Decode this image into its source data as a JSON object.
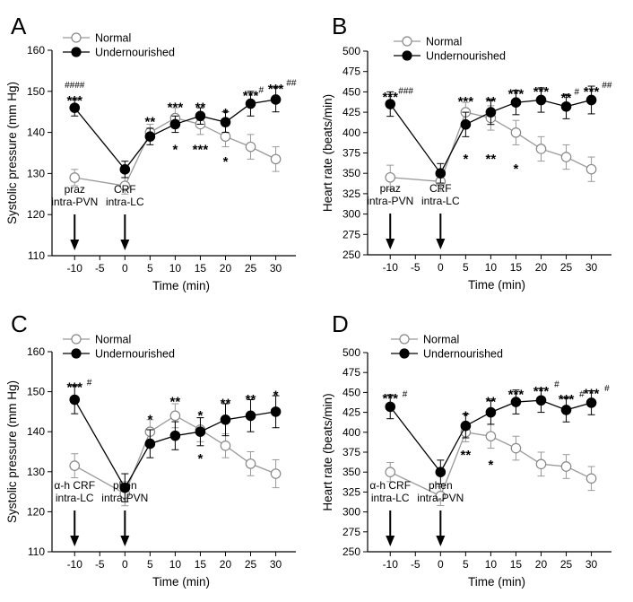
{
  "figure": {
    "legend_normal": "Normal",
    "legend_under": "Undernourished"
  },
  "chart_data": [
    {
      "panel": "A",
      "type": "line",
      "ylabel": "Systolic pressure (mm Hg)",
      "xlabel": "Time (min)",
      "ylim": [
        110,
        160
      ],
      "yticks": [
        110,
        120,
        130,
        140,
        150,
        160
      ],
      "xticks": [
        -10,
        -5,
        0,
        5,
        10,
        15,
        20,
        25,
        30
      ],
      "x": [
        -10,
        0,
        5,
        10,
        15,
        20,
        25,
        30
      ],
      "series": [
        {
          "name": "Normal",
          "values": [
            129,
            127,
            140,
            143.5,
            142,
            139,
            136.5,
            133.5
          ],
          "errors": [
            2,
            2,
            2,
            2.5,
            2.5,
            2.5,
            3,
            3
          ]
        },
        {
          "name": "Undernourished",
          "values": [
            146,
            131,
            139,
            142,
            144,
            142.5,
            147,
            148
          ],
          "errors": [
            2,
            2,
            2,
            2,
            2,
            2.5,
            3,
            3
          ]
        }
      ],
      "annotations": [
        {
          "text": "####",
          "x": -10,
          "y": 151.7,
          "size": 10
        },
        {
          "text": "***",
          "x": -10,
          "y": 148.6,
          "size": 15
        },
        {
          "text": "**",
          "x": 5,
          "y": 143.5,
          "size": 15
        },
        {
          "text": "***",
          "x": 10,
          "y": 147,
          "size": 15
        },
        {
          "text": "**",
          "x": 15,
          "y": 147,
          "size": 15
        },
        {
          "text": "*",
          "x": 20,
          "y": 145.6,
          "size": 15
        },
        {
          "text": "***",
          "x": 25,
          "y": 149.8,
          "size": 15
        },
        {
          "text": "#",
          "x": 27.1,
          "y": 150.5,
          "size": 10
        },
        {
          "text": "***",
          "x": 30,
          "y": 151.5,
          "size": 15
        },
        {
          "text": "##",
          "x": 33.1,
          "y": 152.3,
          "size": 10
        },
        {
          "text": "*",
          "x": 10,
          "y": 136.8,
          "size": 15
        },
        {
          "text": "***",
          "x": 15,
          "y": 136.8,
          "size": 15
        },
        {
          "text": "*",
          "x": 20,
          "y": 133.8,
          "size": 15
        }
      ],
      "drug_labels": [
        {
          "x": -10,
          "line1": "praz",
          "line2": "intra-PVN"
        },
        {
          "x": 0,
          "line1": "CRF",
          "line2": "intra-LC"
        }
      ]
    },
    {
      "panel": "B",
      "type": "line",
      "ylabel": "Heart rate (beats/min)",
      "xlabel": "Time (min)",
      "ylim": [
        250,
        500
      ],
      "yticks": [
        250,
        275,
        300,
        325,
        350,
        375,
        400,
        425,
        450,
        475,
        500
      ],
      "xticks": [
        -10,
        -5,
        0,
        5,
        10,
        15,
        20,
        25,
        30
      ],
      "x": [
        -10,
        0,
        5,
        10,
        15,
        20,
        25,
        30
      ],
      "series": [
        {
          "name": "Normal",
          "values": [
            345,
            340,
            425,
            418,
            400,
            380,
            370,
            355
          ],
          "errors": [
            15,
            12,
            12,
            15,
            15,
            15,
            15,
            15
          ]
        },
        {
          "name": "Undernourished",
          "values": [
            435,
            350,
            410,
            425,
            437,
            440,
            432,
            440
          ],
          "errors": [
            15,
            12,
            15,
            15,
            15,
            15,
            15,
            17
          ]
        }
      ],
      "annotations": [
        {
          "text": "***",
          "x": -10,
          "y": 448,
          "size": 15
        },
        {
          "text": "###",
          "x": -6.9,
          "y": 452,
          "size": 10
        },
        {
          "text": "***",
          "x": 5,
          "y": 443,
          "size": 15
        },
        {
          "text": "**",
          "x": 10,
          "y": 443,
          "size": 15
        },
        {
          "text": "***",
          "x": 15,
          "y": 452,
          "size": 15
        },
        {
          "text": "***",
          "x": 20,
          "y": 455,
          "size": 15
        },
        {
          "text": "**",
          "x": 25,
          "y": 447,
          "size": 15
        },
        {
          "text": "#",
          "x": 27.1,
          "y": 451,
          "size": 10
        },
        {
          "text": "***",
          "x": 30,
          "y": 455,
          "size": 15
        },
        {
          "text": "##",
          "x": 33.1,
          "y": 459,
          "size": 10
        },
        {
          "text": "*",
          "x": 5,
          "y": 372,
          "size": 15
        },
        {
          "text": "**",
          "x": 10,
          "y": 372,
          "size": 15
        },
        {
          "text": "*",
          "x": 15,
          "y": 360,
          "size": 15
        }
      ],
      "drug_labels": [
        {
          "x": -10,
          "line1": "praz",
          "line2": "intra-PVN"
        },
        {
          "x": 0,
          "line1": "CRF",
          "line2": "intra-LC"
        }
      ]
    },
    {
      "panel": "C",
      "type": "line",
      "ylabel": "Systolic pressure (mm Hg)",
      "xlabel": "Time (min)",
      "ylim": [
        110,
        160
      ],
      "yticks": [
        110,
        120,
        130,
        140,
        150,
        160
      ],
      "xticks": [
        -10,
        -5,
        0,
        5,
        10,
        15,
        20,
        25,
        30
      ],
      "x": [
        -10,
        0,
        5,
        10,
        15,
        20,
        25,
        30
      ],
      "series": [
        {
          "name": "Normal",
          "values": [
            131.5,
            124.5,
            140,
            144,
            140.5,
            136.5,
            132,
            129.5
          ],
          "errors": [
            3,
            3,
            3,
            3,
            3,
            3,
            3,
            3.5
          ]
        },
        {
          "name": "Undernourished",
          "values": [
            148,
            126,
            137,
            139,
            140,
            143,
            144,
            145
          ],
          "errors": [
            3.5,
            3.5,
            3.5,
            3.5,
            3.5,
            4,
            4,
            4
          ]
        }
      ],
      "annotations": [
        {
          "text": "***",
          "x": -10,
          "y": 152,
          "size": 15
        },
        {
          "text": "#",
          "x": -7.1,
          "y": 152.5,
          "size": 10
        },
        {
          "text": "*",
          "x": 5,
          "y": 144,
          "size": 15
        },
        {
          "text": "**",
          "x": 10,
          "y": 148.5,
          "size": 15
        },
        {
          "text": "*",
          "x": 15,
          "y": 145,
          "size": 15
        },
        {
          "text": "**",
          "x": 20,
          "y": 148,
          "size": 15
        },
        {
          "text": "**",
          "x": 25,
          "y": 149,
          "size": 15
        },
        {
          "text": "*",
          "x": 30,
          "y": 150,
          "size": 15
        },
        {
          "text": "*",
          "x": 15,
          "y": 134.2,
          "size": 15
        }
      ],
      "drug_labels": [
        {
          "x": -10,
          "line1": "α-h CRF",
          "line2": "intra-LC"
        },
        {
          "x": 0,
          "line1": "phen",
          "line2": "intra-PVN"
        }
      ]
    },
    {
      "panel": "D",
      "type": "line",
      "ylabel": "Heart rate (beats/min)",
      "xlabel": "Time (min)",
      "ylim": [
        250,
        500
      ],
      "yticks": [
        250,
        275,
        300,
        325,
        350,
        375,
        400,
        425,
        450,
        475,
        500
      ],
      "xticks": [
        -10,
        -5,
        0,
        5,
        10,
        15,
        20,
        25,
        30
      ],
      "x": [
        -10,
        0,
        5,
        10,
        15,
        20,
        25,
        30
      ],
      "series": [
        {
          "name": "Normal",
          "values": [
            350,
            320,
            400,
            395,
            380,
            360,
            357,
            342
          ],
          "errors": [
            12,
            12,
            12,
            15,
            15,
            15,
            15,
            15
          ]
        },
        {
          "name": "Undernourished",
          "values": [
            432,
            350,
            408,
            425,
            438,
            440,
            428,
            437
          ],
          "errors": [
            15,
            15,
            15,
            15,
            15,
            15,
            15,
            15
          ]
        }
      ],
      "annotations": [
        {
          "text": "***",
          "x": -10,
          "y": 447,
          "size": 15
        },
        {
          "text": "#",
          "x": -7.1,
          "y": 449,
          "size": 10
        },
        {
          "text": "*",
          "x": 5,
          "y": 425,
          "size": 15
        },
        {
          "text": "**",
          "x": 10,
          "y": 443,
          "size": 15
        },
        {
          "text": "***",
          "x": 15,
          "y": 452,
          "size": 15
        },
        {
          "text": "***",
          "x": 20,
          "y": 456,
          "size": 15
        },
        {
          "text": "#",
          "x": 23.1,
          "y": 461,
          "size": 10
        },
        {
          "text": "***",
          "x": 25,
          "y": 446,
          "size": 15
        },
        {
          "text": "#",
          "x": 28.1,
          "y": 449,
          "size": 10
        },
        {
          "text": "***",
          "x": 30,
          "y": 453,
          "size": 15
        },
        {
          "text": "#",
          "x": 33.1,
          "y": 456,
          "size": 10
        },
        {
          "text": "**",
          "x": 5,
          "y": 376,
          "size": 15
        },
        {
          "text": "*",
          "x": 10,
          "y": 364,
          "size": 15
        }
      ],
      "drug_labels": [
        {
          "x": -10,
          "line1": "α-h CRF",
          "line2": "intra-LC"
        },
        {
          "x": 0,
          "line1": "phen",
          "line2": "intra-PVN"
        }
      ]
    }
  ]
}
